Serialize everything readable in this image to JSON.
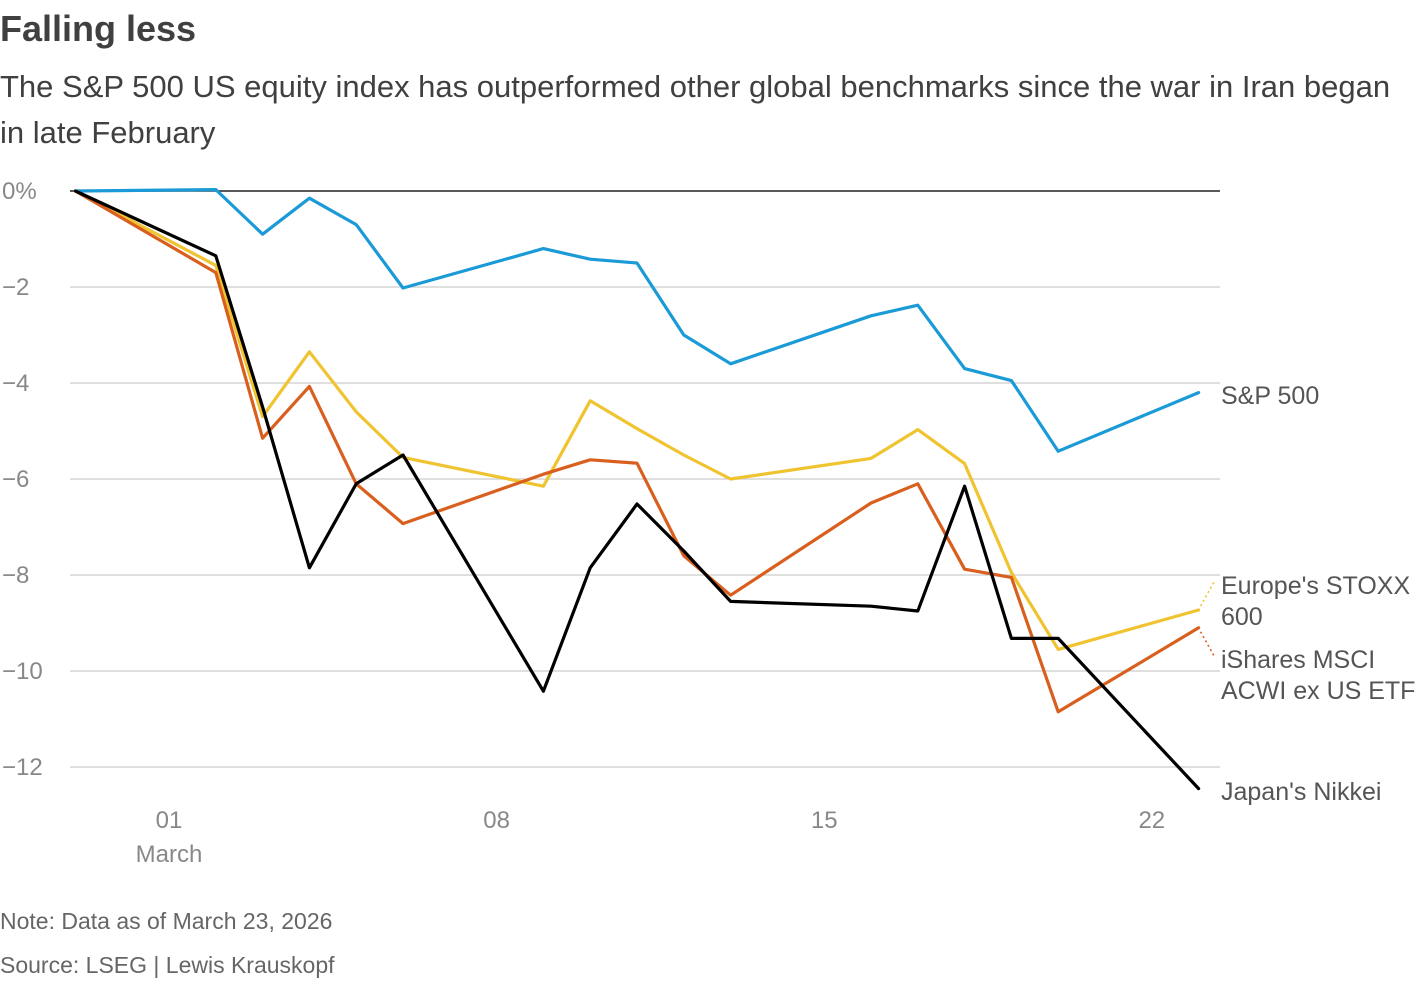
{
  "title": "Falling less",
  "subtitle": "The S&P 500 US equity index has outperformed other global benchmarks since the war in Iran began in late February",
  "note": "Note: Data as of March 23, 2026",
  "source": "Source: LSEG | Lewis Krauskopf",
  "chart_data": {
    "type": "line",
    "title": "Falling less",
    "xlabel": "",
    "ylabel": "",
    "ylim": [
      -12,
      0
    ],
    "yticks": [
      0,
      -2,
      -4,
      -6,
      -8,
      -10,
      -12
    ],
    "ytick_labels": [
      "0%",
      "−2",
      "−4",
      "−6",
      "−8",
      "−10",
      "−12"
    ],
    "xticks": [
      {
        "day": 1,
        "label": "01",
        "sublabel": "March"
      },
      {
        "day": 8,
        "label": "08",
        "sublabel": ""
      },
      {
        "day": 15,
        "label": "15",
        "sublabel": ""
      },
      {
        "day": 22,
        "label": "22",
        "sublabel": ""
      }
    ],
    "x": [
      -1,
      2,
      3,
      4,
      5,
      6,
      9,
      10,
      11,
      12,
      13,
      16,
      17,
      18,
      19,
      20,
      23
    ],
    "series": [
      {
        "name": "S&P 500",
        "label_lines": [
          "S&P 500"
        ],
        "color": "#1a9ad6",
        "values": [
          0,
          0.03,
          -0.9,
          -0.15,
          -0.7,
          -2.02,
          -1.2,
          -1.42,
          -1.5,
          -3.0,
          -3.6,
          -2.6,
          -2.38,
          -3.7,
          -3.95,
          -5.42,
          -4.2
        ]
      },
      {
        "name": "Europe's STOXX 600",
        "label_lines": [
          "Europe's STOXX",
          "600"
        ],
        "color": "#f0c330",
        "values": [
          0,
          -1.55,
          -4.7,
          -3.35,
          -4.6,
          -5.55,
          -6.15,
          -4.37,
          -4.95,
          -5.5,
          -6.0,
          -5.57,
          -4.97,
          -5.68,
          -7.95,
          -9.55,
          -8.73
        ]
      },
      {
        "name": "iShares MSCI ACWI ex US ETF",
        "label_lines": [
          "iShares MSCI",
          "ACWI ex US ETF"
        ],
        "color": "#d95f1f",
        "values": [
          0,
          -1.7,
          -5.15,
          -4.07,
          -6.1,
          -6.93,
          -5.9,
          -5.6,
          -5.67,
          -7.6,
          -8.42,
          -6.5,
          -6.1,
          -7.88,
          -8.05,
          -10.85,
          -9.1
        ]
      },
      {
        "name": "Japan's Nikkei",
        "label_lines": [
          "Japan's Nikkei"
        ],
        "color": "#000000",
        "values": [
          0,
          -1.35,
          -4.5,
          -7.85,
          -6.1,
          -5.5,
          -10.42,
          -7.85,
          -6.52,
          -7.5,
          -8.55,
          -8.65,
          -8.75,
          -6.15,
          -9.32,
          -9.32,
          -12.45
        ]
      }
    ]
  }
}
